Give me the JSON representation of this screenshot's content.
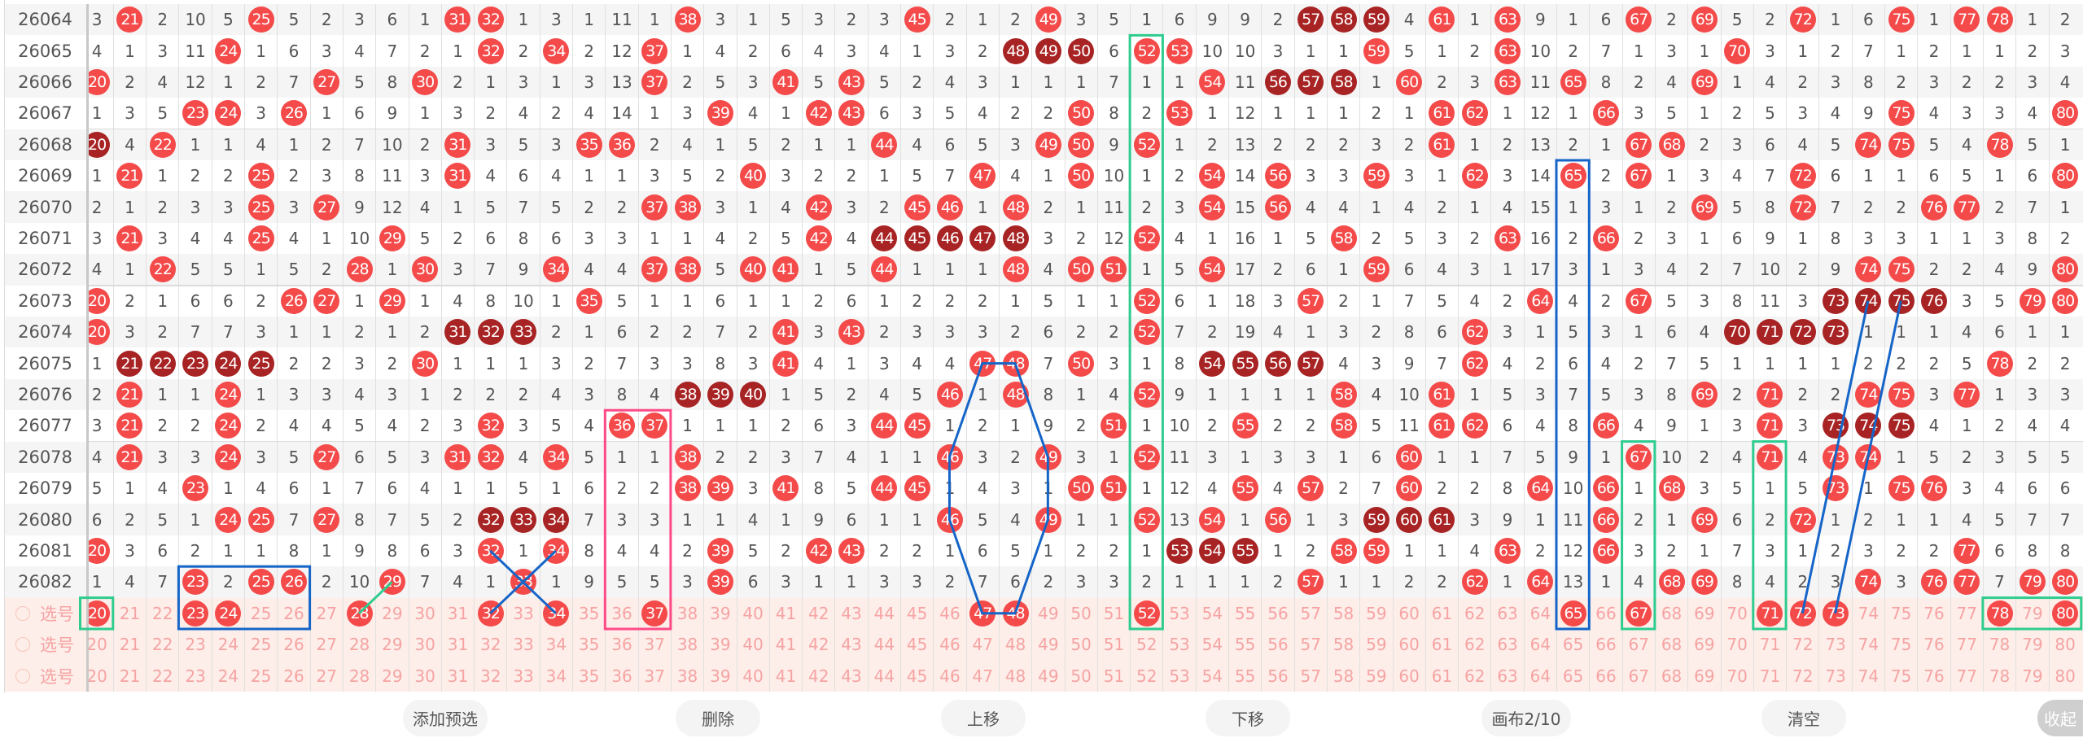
{
  "colors": {
    "hit": "#f44a4a",
    "hit_consecutive": "#a82424",
    "select_bg": "#fdeee9",
    "select_text": "#f6a3a3",
    "annot_blue": "#1565c8",
    "annot_green": "#2ecc8f",
    "annot_pink": "#ff4a88"
  },
  "columns_from": 20,
  "columns_to": 80,
  "rows": [
    {
      "period": "26064",
      "cells": [
        3,
        21,
        2,
        10,
        5,
        25,
        5,
        2,
        3,
        6,
        1,
        31,
        32,
        1,
        3,
        1,
        11,
        1,
        38,
        3,
        1,
        5,
        3,
        2,
        3,
        45,
        2,
        1,
        2,
        49,
        3,
        5,
        1,
        6,
        9,
        9,
        2,
        57,
        58,
        59,
        4,
        61,
        1,
        63,
        9,
        1,
        6,
        67,
        2,
        69,
        5,
        2,
        72,
        1,
        6,
        75,
        1,
        77,
        78,
        1,
        2
      ],
      "dark": [
        57,
        58,
        59
      ]
    },
    {
      "period": "26065",
      "cells": [
        4,
        1,
        3,
        11,
        24,
        1,
        6,
        3,
        4,
        7,
        2,
        1,
        32,
        2,
        34,
        2,
        12,
        37,
        1,
        4,
        2,
        6,
        4,
        3,
        4,
        1,
        3,
        2,
        48,
        49,
        50,
        6,
        52,
        53,
        10,
        10,
        3,
        1,
        1,
        59,
        5,
        1,
        2,
        63,
        10,
        2,
        7,
        1,
        3,
        1,
        70,
        3,
        1,
        2,
        7,
        1,
        2,
        1,
        1,
        2,
        3
      ],
      "dark": [
        48,
        49,
        50
      ]
    },
    {
      "period": "26066",
      "cells": [
        20,
        2,
        4,
        12,
        1,
        2,
        7,
        27,
        5,
        8,
        30,
        2,
        1,
        3,
        1,
        3,
        13,
        37,
        2,
        5,
        3,
        41,
        5,
        43,
        5,
        2,
        4,
        3,
        1,
        1,
        1,
        7,
        1,
        1,
        54,
        11,
        56,
        57,
        58,
        1,
        60,
        2,
        3,
        63,
        11,
        65,
        8,
        2,
        4,
        69,
        1,
        4,
        2,
        3,
        8,
        2,
        3,
        2,
        2,
        3,
        4
      ],
      "dark": [
        56,
        57,
        58
      ]
    },
    {
      "period": "26067",
      "cells": [
        1,
        3,
        5,
        23,
        24,
        3,
        26,
        1,
        6,
        9,
        1,
        3,
        2,
        4,
        2,
        4,
        14,
        1,
        3,
        39,
        4,
        1,
        42,
        43,
        6,
        3,
        5,
        4,
        2,
        2,
        50,
        8,
        2,
        53,
        1,
        12,
        1,
        1,
        1,
        2,
        1,
        61,
        62,
        1,
        12,
        1,
        66,
        3,
        5,
        1,
        2,
        5,
        3,
        4,
        9,
        75,
        4,
        3,
        3,
        4,
        80
      ],
      "dark": []
    },
    {
      "period": "26068",
      "cells": [
        20,
        4,
        22,
        1,
        1,
        4,
        1,
        2,
        7,
        10,
        2,
        31,
        3,
        5,
        3,
        35,
        36,
        2,
        4,
        1,
        5,
        2,
        1,
        1,
        44,
        4,
        6,
        5,
        3,
        49,
        50,
        9,
        52,
        1,
        2,
        13,
        2,
        2,
        2,
        3,
        2,
        61,
        1,
        2,
        13,
        2,
        1,
        67,
        68,
        2,
        3,
        6,
        4,
        5,
        74,
        75,
        5,
        4,
        78,
        5,
        1
      ],
      "dark": [
        20
      ]
    },
    {
      "period": "26069",
      "cells": [
        1,
        21,
        1,
        2,
        2,
        25,
        2,
        3,
        8,
        11,
        3,
        31,
        4,
        6,
        4,
        1,
        1,
        3,
        5,
        2,
        40,
        3,
        2,
        2,
        1,
        5,
        7,
        47,
        4,
        1,
        50,
        10,
        1,
        2,
        54,
        14,
        56,
        3,
        3,
        59,
        3,
        1,
        62,
        3,
        14,
        65,
        2,
        67,
        1,
        3,
        4,
        7,
        72,
        6,
        1,
        1,
        6,
        5,
        1,
        6,
        80
      ],
      "dark": []
    },
    {
      "period": "26070",
      "cells": [
        2,
        1,
        2,
        3,
        3,
        25,
        3,
        27,
        9,
        12,
        4,
        1,
        5,
        7,
        5,
        2,
        2,
        37,
        38,
        3,
        1,
        4,
        42,
        3,
        2,
        45,
        46,
        1,
        48,
        2,
        1,
        11,
        2,
        3,
        54,
        15,
        56,
        4,
        4,
        1,
        4,
        2,
        1,
        4,
        15,
        1,
        3,
        1,
        2,
        69,
        5,
        8,
        72,
        7,
        2,
        2,
        76,
        77,
        2,
        7,
        1
      ],
      "dark": []
    },
    {
      "period": "26071",
      "cells": [
        3,
        21,
        3,
        4,
        4,
        25,
        4,
        1,
        10,
        29,
        5,
        2,
        6,
        8,
        6,
        3,
        3,
        1,
        1,
        4,
        2,
        5,
        42,
        4,
        44,
        45,
        46,
        47,
        48,
        3,
        2,
        12,
        52,
        4,
        1,
        16,
        1,
        5,
        58,
        2,
        5,
        3,
        2,
        63,
        16,
        2,
        66,
        2,
        3,
        1,
        6,
        9,
        1,
        8,
        3,
        3,
        1,
        1,
        3,
        8,
        2
      ],
      "dark": [
        44,
        45,
        46,
        47,
        48
      ]
    },
    {
      "period": "26072",
      "cells": [
        4,
        1,
        22,
        5,
        5,
        1,
        5,
        2,
        28,
        1,
        30,
        3,
        7,
        9,
        34,
        4,
        4,
        37,
        38,
        5,
        40,
        41,
        1,
        5,
        44,
        1,
        1,
        1,
        48,
        4,
        50,
        51,
        1,
        5,
        54,
        17,
        2,
        6,
        1,
        59,
        6,
        4,
        3,
        1,
        17,
        3,
        1,
        3,
        4,
        2,
        7,
        10,
        2,
        9,
        74,
        75,
        2,
        2,
        4,
        9,
        80
      ],
      "dark": []
    },
    {
      "period": "26073",
      "cells": [
        20,
        2,
        1,
        6,
        6,
        2,
        26,
        27,
        1,
        29,
        1,
        4,
        8,
        10,
        1,
        35,
        5,
        1,
        1,
        6,
        1,
        1,
        2,
        6,
        1,
        2,
        2,
        2,
        1,
        5,
        1,
        1,
        52,
        6,
        1,
        18,
        3,
        57,
        2,
        1,
        7,
        5,
        4,
        2,
        64,
        4,
        2,
        67,
        5,
        3,
        8,
        11,
        3,
        73,
        74,
        75,
        76,
        3,
        5,
        79,
        80
      ],
      "dark": [
        73,
        74,
        75,
        76
      ]
    },
    {
      "period": "26074",
      "cells": [
        20,
        3,
        2,
        7,
        7,
        3,
        1,
        1,
        2,
        1,
        2,
        31,
        32,
        33,
        2,
        1,
        6,
        2,
        2,
        7,
        2,
        41,
        3,
        43,
        2,
        3,
        3,
        3,
        2,
        6,
        2,
        2,
        52,
        7,
        2,
        19,
        4,
        1,
        3,
        2,
        8,
        6,
        62,
        3,
        1,
        5,
        3,
        1,
        6,
        4,
        70,
        71,
        72,
        73,
        1,
        1,
        1,
        4,
        6,
        1,
        1
      ],
      "dark": [
        31,
        32,
        33,
        70,
        71,
        72,
        73
      ]
    },
    {
      "period": "26075",
      "cells": [
        1,
        21,
        22,
        23,
        24,
        25,
        2,
        2,
        3,
        2,
        30,
        1,
        1,
        1,
        3,
        2,
        7,
        3,
        3,
        8,
        3,
        41,
        4,
        1,
        3,
        4,
        4,
        47,
        48,
        7,
        50,
        3,
        1,
        8,
        54,
        55,
        56,
        57,
        4,
        3,
        9,
        7,
        62,
        4,
        2,
        6,
        4,
        2,
        7,
        5,
        1,
        1,
        1,
        1,
        2,
        2,
        2,
        5,
        78,
        2,
        2
      ],
      "dark": [
        21,
        22,
        23,
        24,
        25,
        54,
        55,
        56,
        57
      ]
    },
    {
      "period": "26076",
      "cells": [
        2,
        21,
        1,
        1,
        24,
        1,
        3,
        3,
        4,
        3,
        1,
        2,
        2,
        2,
        4,
        3,
        8,
        4,
        38,
        39,
        40,
        1,
        5,
        2,
        4,
        5,
        46,
        1,
        48,
        8,
        1,
        4,
        52,
        9,
        1,
        1,
        1,
        1,
        58,
        4,
        10,
        61,
        1,
        5,
        3,
        7,
        5,
        3,
        8,
        69,
        2,
        71,
        2,
        2,
        74,
        75,
        3,
        77,
        1,
        3,
        3
      ],
      "dark": [
        38,
        39,
        40
      ]
    },
    {
      "period": "26077",
      "cells": [
        3,
        21,
        2,
        2,
        24,
        2,
        4,
        4,
        5,
        4,
        2,
        3,
        32,
        3,
        5,
        4,
        36,
        37,
        1,
        1,
        1,
        2,
        6,
        3,
        44,
        45,
        1,
        2,
        1,
        9,
        2,
        51,
        1,
        10,
        2,
        55,
        2,
        2,
        58,
        5,
        11,
        61,
        62,
        6,
        4,
        8,
        66,
        4,
        9,
        1,
        3,
        71,
        3,
        73,
        74,
        75,
        4,
        1,
        2,
        4,
        4
      ],
      "dark": [
        73,
        74,
        75
      ]
    },
    {
      "period": "26078",
      "cells": [
        4,
        21,
        3,
        3,
        24,
        3,
        5,
        27,
        6,
        5,
        3,
        31,
        32,
        4,
        34,
        5,
        1,
        1,
        38,
        2,
        2,
        3,
        7,
        4,
        1,
        1,
        46,
        3,
        2,
        49,
        3,
        1,
        52,
        11,
        3,
        1,
        3,
        3,
        1,
        6,
        60,
        1,
        1,
        7,
        5,
        9,
        1,
        67,
        10,
        2,
        4,
        71,
        4,
        73,
        74,
        1,
        5,
        2,
        3,
        5,
        5
      ],
      "dark": []
    },
    {
      "period": "26079",
      "cells": [
        5,
        1,
        4,
        23,
        1,
        4,
        6,
        1,
        7,
        6,
        4,
        1,
        1,
        5,
        1,
        6,
        2,
        2,
        38,
        39,
        3,
        41,
        8,
        5,
        44,
        45,
        1,
        4,
        3,
        1,
        50,
        51,
        1,
        12,
        4,
        55,
        4,
        57,
        2,
        7,
        60,
        2,
        2,
        8,
        64,
        10,
        66,
        1,
        68,
        3,
        5,
        1,
        5,
        73,
        1,
        75,
        76,
        3,
        4,
        6,
        6
      ],
      "dark": []
    },
    {
      "period": "26080",
      "cells": [
        6,
        2,
        5,
        1,
        24,
        25,
        7,
        27,
        8,
        7,
        5,
        2,
        32,
        33,
        34,
        7,
        3,
        3,
        1,
        1,
        4,
        1,
        9,
        6,
        1,
        1,
        46,
        5,
        4,
        49,
        1,
        1,
        52,
        13,
        54,
        1,
        56,
        1,
        3,
        59,
        60,
        61,
        3,
        9,
        1,
        11,
        66,
        2,
        1,
        69,
        6,
        2,
        72,
        1,
        2,
        1,
        1,
        4,
        5,
        7,
        7
      ],
      "dark": [
        32,
        33,
        34,
        59,
        60,
        61
      ]
    },
    {
      "period": "26081",
      "cells": [
        20,
        3,
        6,
        2,
        1,
        1,
        8,
        1,
        9,
        8,
        6,
        3,
        32,
        1,
        34,
        8,
        4,
        4,
        2,
        39,
        5,
        2,
        42,
        43,
        2,
        2,
        1,
        6,
        5,
        1,
        2,
        2,
        1,
        53,
        54,
        55,
        1,
        2,
        58,
        59,
        1,
        1,
        4,
        63,
        2,
        12,
        66,
        3,
        2,
        1,
        7,
        3,
        1,
        2,
        3,
        2,
        2,
        77,
        6,
        8,
        8
      ],
      "dark": [
        53,
        54,
        55
      ]
    },
    {
      "period": "26082",
      "cells": [
        1,
        4,
        7,
        23,
        2,
        25,
        26,
        2,
        10,
        29,
        7,
        4,
        1,
        33,
        1,
        9,
        5,
        5,
        3,
        39,
        6,
        3,
        1,
        1,
        3,
        3,
        2,
        7,
        6,
        2,
        3,
        3,
        2,
        1,
        1,
        1,
        2,
        57,
        1,
        1,
        2,
        2,
        62,
        1,
        64,
        13,
        1,
        4,
        68,
        69,
        8,
        4,
        2,
        3,
        74,
        3,
        76,
        77,
        7,
        79,
        80
      ],
      "dark": []
    }
  ],
  "select_rows": [
    {
      "label": "选号",
      "selected": [
        20,
        23,
        24,
        28,
        32,
        34,
        37,
        47,
        48,
        52,
        65,
        67,
        71,
        72,
        73,
        78,
        80
      ]
    },
    {
      "label": "选号",
      "selected": []
    },
    {
      "label": "选号",
      "selected": []
    }
  ],
  "toolbar": {
    "add_preselect": "添加预选",
    "delete": "删除",
    "move_up": "上移",
    "move_down": "下移",
    "canvas": "画布2/10",
    "clear": "清空",
    "collapse": "收起"
  }
}
